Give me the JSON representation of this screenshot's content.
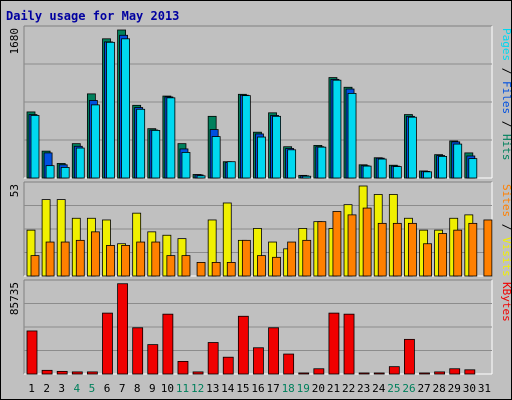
{
  "chart_data": {
    "type": "bar",
    "title": "Daily usage for May 2013",
    "categories": [
      "1",
      "2",
      "3",
      "4",
      "5",
      "6",
      "7",
      "8",
      "9",
      "10",
      "11",
      "12",
      "13",
      "14",
      "15",
      "16",
      "17",
      "18",
      "19",
      "20",
      "21",
      "22",
      "23",
      "24",
      "25",
      "26",
      "27",
      "28",
      "29",
      "30",
      "31"
    ],
    "weekend_days": [
      "4",
      "5",
      "11",
      "12",
      "18",
      "19",
      "25",
      "26"
    ],
    "panels": [
      {
        "id": "top",
        "y_max_label": "1680",
        "ymax": 1680,
        "series": [
          {
            "name": "Hits",
            "color": "#00805c",
            "values": [
              750,
              305,
              165,
              390,
              955,
              1580,
              1680,
              825,
              560,
              930,
              390,
              40,
              700,
              185,
              950,
              520,
              740,
              355,
              30,
              370,
              1140,
              1030,
              150,
              230,
              145,
              720,
              80,
              265,
              420,
              285,
              0
            ]
          },
          {
            "name": "Files",
            "color": "#0050e0",
            "values": [
              720,
              285,
              150,
              360,
              880,
              1545,
              1620,
              800,
              545,
              920,
              330,
              35,
              550,
              175,
              940,
              500,
              710,
              335,
              25,
              355,
              1120,
              1010,
              140,
              225,
              135,
              700,
              75,
              255,
              410,
              250,
              0
            ]
          },
          {
            "name": "Pages",
            "color": "#00d8f0",
            "values": [
              710,
              140,
              120,
              340,
              830,
              1540,
              1580,
              780,
              540,
              910,
              290,
              25,
              470,
              185,
              935,
              465,
              700,
              320,
              20,
              350,
              1110,
              960,
              135,
              215,
              130,
              690,
              70,
              245,
              385,
              220,
              0
            ]
          }
        ]
      },
      {
        "id": "middle",
        "y_max_label": "53",
        "ymax": 53,
        "series": [
          {
            "name": "Visits",
            "color": "#f0f000",
            "values": [
              27,
              45,
              45,
              34,
              34,
              33,
              19,
              37,
              26,
              24,
              22,
              0,
              33,
              43,
              21,
              28,
              20,
              16,
              28,
              32,
              28,
              42,
              53,
              48,
              48,
              34,
              27,
              27,
              34,
              36,
              0
            ]
          },
          {
            "name": "Sites",
            "color": "#ff8000",
            "values": [
              12,
              20,
              20,
              21,
              26,
              18,
              18,
              20,
              20,
              12,
              12,
              8,
              8,
              8,
              21,
              12,
              11,
              20,
              21,
              32,
              38,
              36,
              40,
              31,
              31,
              31,
              19,
              25,
              27,
              31,
              33
            ]
          }
        ]
      },
      {
        "id": "bottom",
        "y_max_label": "85735",
        "ymax": 85735,
        "series": [
          {
            "name": "KBytes",
            "color": "#f00000",
            "values": [
              41000,
              3500,
              2500,
              2000,
              2000,
              58000,
              86000,
              44000,
              28000,
              57000,
              12000,
              2000,
              30000,
              16000,
              55000,
              25000,
              44000,
              19000,
              1000,
              5000,
              58000,
              57000,
              1000,
              1000,
              7000,
              33000,
              1000,
              2000,
              5000,
              4000,
              0
            ]
          }
        ]
      }
    ],
    "right_labels": {
      "top": [
        {
          "text": "Pages",
          "color": "#00d8f0"
        },
        {
          "text": " / ",
          "color": "#000000"
        },
        {
          "text": "Files",
          "color": "#0050e0"
        },
        {
          "text": " / ",
          "color": "#000000"
        },
        {
          "text": "Hits",
          "color": "#00805c"
        }
      ],
      "middle": [
        {
          "text": "Sites",
          "color": "#ff8000"
        },
        {
          "text": " / ",
          "color": "#000000"
        },
        {
          "text": "Visits",
          "color": "#f0f000"
        }
      ],
      "bottom": [
        {
          "text": "KBytes",
          "color": "#f00000"
        }
      ]
    },
    "colors": {
      "title": "#0000a0",
      "panel_bg": "#c0c0c0",
      "outer_bg": "#c0c0c0",
      "gridline": "#8c8c8c",
      "weekday_label": "#000000",
      "weekend_label": "#00805c"
    },
    "grid": true
  }
}
